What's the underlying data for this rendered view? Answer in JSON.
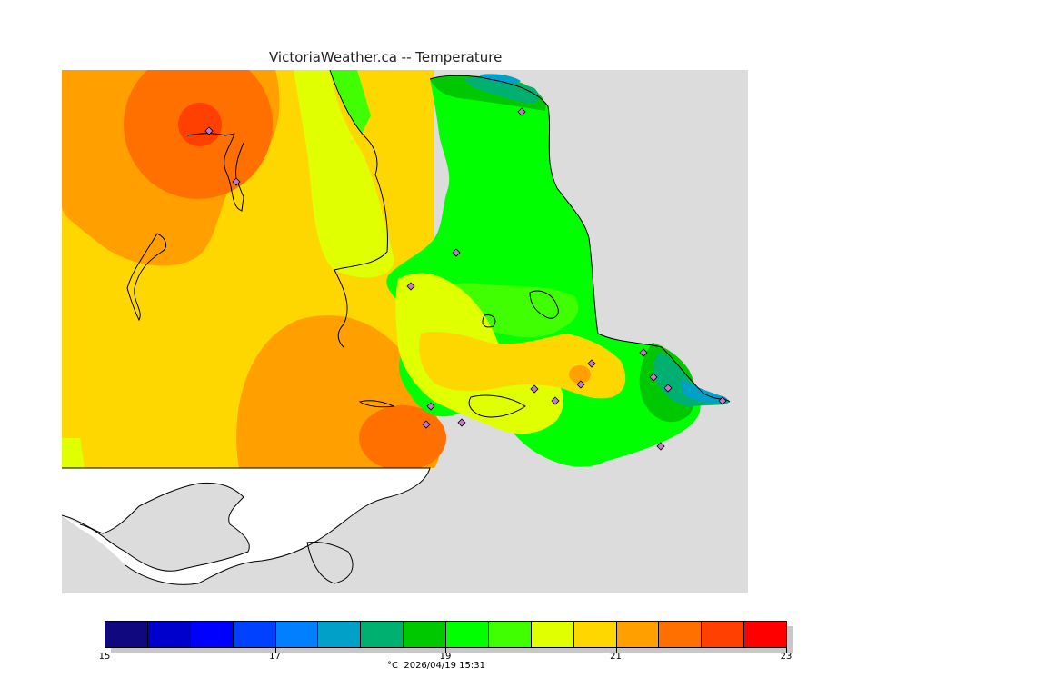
{
  "title": "VictoriaWeather.ca -- Temperature",
  "caption": "°C  2026/04/19 15:31",
  "colorbar": {
    "colors": [
      "#10087f",
      "#0000cc",
      "#0000ff",
      "#0040ff",
      "#0080ff",
      "#00a0c8",
      "#00b070",
      "#00c800",
      "#00ff00",
      "#40ff00",
      "#e0ff00",
      "#ffd700",
      "#ffa000",
      "#ff7000",
      "#ff4000",
      "#ff0000"
    ],
    "labels": [
      "15",
      "17",
      "19",
      "21",
      "23"
    ]
  },
  "map": {
    "land_bg": "#dcdcdc",
    "outside_domain": "#ffffff",
    "station_marker": "#c878c8",
    "palette_used": {
      "darkest": "#ff4000",
      "red_orange": "#ff7000",
      "orange": "#ffa000",
      "gold": "#ffd700",
      "yellow": "#e0ff00",
      "lime": "#40ff00",
      "green": "#00ff00",
      "mid_green": "#00c800",
      "teal": "#00b070",
      "sea_blue": "#00a0c8"
    }
  }
}
